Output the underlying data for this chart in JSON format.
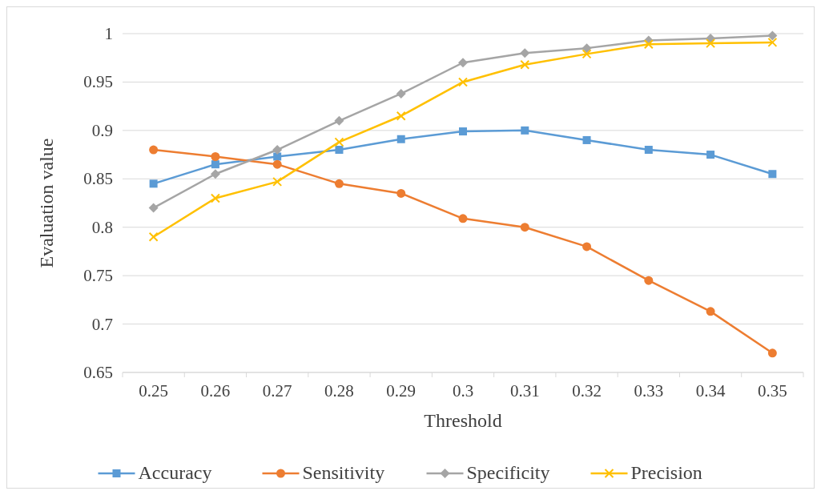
{
  "chart_data": {
    "type": "line",
    "xlabel": "Threshold",
    "ylabel": "Evaluation value",
    "categories": [
      "0.25",
      "0.26",
      "0.27",
      "0.28",
      "0.29",
      "0.3",
      "0.31",
      "0.32",
      "0.33",
      "0.34",
      "0.35"
    ],
    "series": [
      {
        "name": "Accuracy",
        "color": "#5b9bd5",
        "marker": "square",
        "values": [
          0.845,
          0.865,
          0.873,
          0.88,
          0.891,
          0.899,
          0.9,
          0.89,
          0.88,
          0.875,
          0.855
        ]
      },
      {
        "name": "Sensitivity",
        "color": "#ed7d31",
        "marker": "circle",
        "values": [
          0.88,
          0.873,
          0.865,
          0.845,
          0.835,
          0.809,
          0.8,
          0.78,
          0.745,
          0.713,
          0.67
        ]
      },
      {
        "name": "Specificity",
        "color": "#a5a5a5",
        "marker": "diamond",
        "values": [
          0.82,
          0.855,
          0.88,
          0.91,
          0.938,
          0.97,
          0.98,
          0.985,
          0.993,
          0.995,
          0.998
        ]
      },
      {
        "name": "Precision",
        "color": "#ffc000",
        "marker": "cross",
        "values": [
          0.79,
          0.83,
          0.847,
          0.888,
          0.915,
          0.95,
          0.968,
          0.979,
          0.989,
          0.99,
          0.991
        ]
      }
    ],
    "ylim": [
      0.65,
      1
    ],
    "yticks": [
      0.65,
      0.7,
      0.75,
      0.8,
      0.85,
      0.9,
      0.95,
      1
    ],
    "grid": "y",
    "legend": "bottom",
    "line_style": "solid"
  }
}
